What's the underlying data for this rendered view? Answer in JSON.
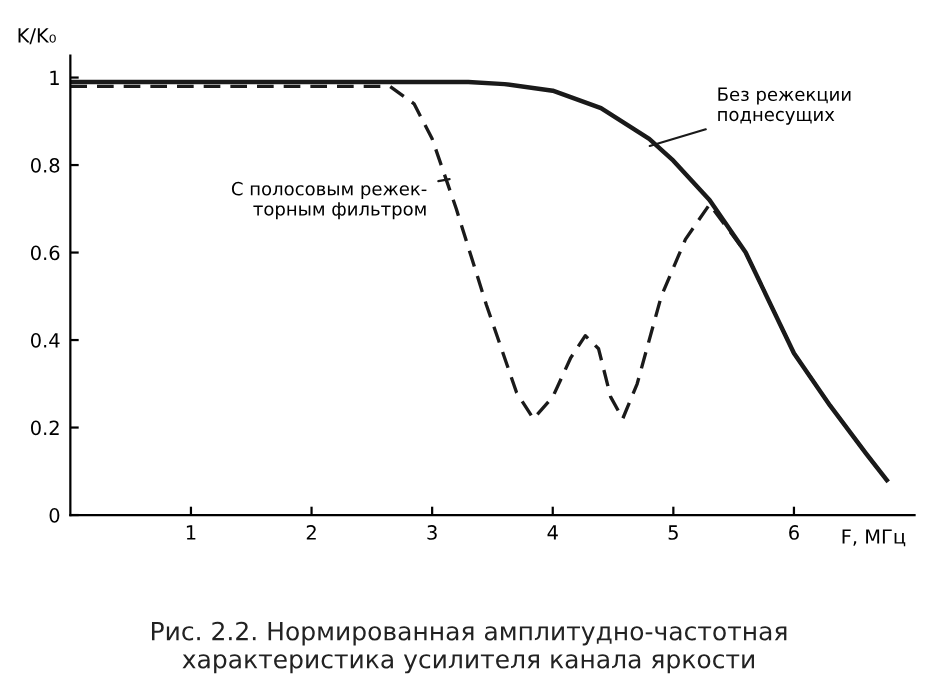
{
  "chart_data": {
    "type": "line",
    "title": "Рис. 2.2. Нормированная амплитудно-частотная\nхарактеристика усилителя канала яркости",
    "xlabel": "F, МГц",
    "ylabel": "K/K₀",
    "xlim": [
      0,
      7
    ],
    "ylim": [
      0,
      1.05
    ],
    "xticks": [
      1,
      2,
      3,
      4,
      5,
      6
    ],
    "yticks": [
      0,
      0.2,
      0.4,
      0.6,
      0.8,
      1
    ],
    "grid": false,
    "legend": false,
    "series": [
      {
        "color": "#1a1a1a",
        "line_style": "solid",
        "x": [
          0,
          1,
          2,
          3,
          3.3,
          3.6,
          4,
          4.4,
          4.8,
          5,
          5.3,
          5.6,
          6,
          6.3,
          6.6,
          6.77
        ],
        "values": [
          0.99,
          0.99,
          0.99,
          0.99,
          0.99,
          0.985,
          0.97,
          0.93,
          0.86,
          0.81,
          0.72,
          0.6,
          0.37,
          0.25,
          0.14,
          0.08
        ]
      },
      {
        "color": "#1a1a1a",
        "line_style": "dashed",
        "x": [
          0,
          1,
          2,
          2.65,
          2.85,
          3.0,
          3.2,
          3.45,
          3.7,
          3.84,
          4.0,
          4.15,
          4.27,
          4.38,
          4.48,
          4.58,
          4.7,
          4.9,
          5.1,
          5.3,
          5.6,
          6,
          6.3,
          6.6,
          6.77
        ],
        "values": [
          0.98,
          0.98,
          0.98,
          0.98,
          0.94,
          0.86,
          0.7,
          0.48,
          0.28,
          0.22,
          0.27,
          0.36,
          0.41,
          0.38,
          0.27,
          0.22,
          0.3,
          0.5,
          0.63,
          0.71,
          0.6,
          0.37,
          0.25,
          0.14,
          0.08
        ]
      }
    ],
    "annotations": [
      {
        "text": "С полосовым режек-\nторным фильтром",
        "x": 3.19,
        "y": 0.77
      },
      {
        "text": "Без режекции\nподнесущих",
        "x": 4.76,
        "y": 0.84
      }
    ]
  }
}
